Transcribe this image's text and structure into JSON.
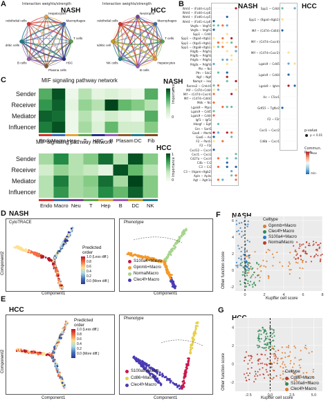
{
  "panels": {
    "A": {
      "letter": "A",
      "nash": {
        "subtitle": "Interaction weights/strength",
        "label": "NASH",
        "nodes": [
          "Hepatocytes",
          "Macrophages",
          "T cells",
          "HSC",
          "Plasma cells",
          "B cells",
          "Dendritic cells",
          "Endothelial cells"
        ]
      },
      "hcc": {
        "subtitle": "Interaction weights/strength",
        "label": "HCC",
        "nodes": [
          "Neutrophil",
          "Macrophages",
          "T cells",
          "Hepatocytes",
          "B cells",
          "NK cells",
          "Dendritic cell",
          "Endothelial cells"
        ]
      }
    },
    "B": {
      "letter": "B",
      "nash_label": "NASH",
      "hcc_label": "HCC",
      "nash_pairs": [
        "Wnt4 − (Fzd4+Lrp5)",
        "Wnt4 − (Fzd4+Lrp6)",
        "Wnt4 − (Fzd6+Lrp5)",
        "Wnt4 − (Fzd1+Lrp6)",
        "Vegfa − Vegfr1",
        "Vegfa − Vegfr2",
        "Spp1 − Cd44",
        "Spp1 − (Itga4+Itgb1)",
        "Spp1 − (Itga5+Itgb1)",
        "Spp1 − (Itga8+Itgb1)",
        "Pdgfb − Pdgfra",
        "Pdgfb − Pdgfrb",
        "Pdgfa − Pdgfra",
        "Pdgfa − Pdgfrb",
        "Ptn − Ncl",
        "Ptn − Sdc2",
        "Ngf − Ngfr",
        "Nampt − Insr",
        "Rarres2 − Cmklr1",
        "Mif − Cd74+Cd44",
        "Mif − (Cd74+Cxcr4)",
        "Mif − (Cd74+Cd44)",
        "Mdk − Ncl",
        "Lgals9 − Ptprc",
        "Lgals9 − Cd45",
        "Lgals9 − Cd44",
        "Igf1 − Igf1r",
        "Hbegf − Egfr",
        "Grn − Sort1",
        "Gas6 − Mertk",
        "Gas6 − Axl",
        "F2 − Pard3",
        "F2 − F2r",
        "Cxcl12 − Cxcr4",
        "Cxcl1 − Cxcr2",
        "Cd27a − Cxcr4",
        "C4b − Cr2",
        "C3 − Cr2",
        "C3 − (Itgam+Itgb2)",
        "Apln − Aplnr",
        "Agt − Agtr1a"
      ],
      "hcc_pairs": [
        "Spp1 − Cd44",
        "Spp1 − (Itga4+Itgb1)",
        "Mif − (Cd74+Cd44)",
        "Mif − (Cd74+Cxcr4)",
        "Mif − (Cd74+Cxcr2)",
        "Lgals9 − Cd45",
        "Lgals9 − Cd44",
        "Lgals9 − Ighm",
        "Hc − C5ar1",
        "Gdf15 − Tgfbr2",
        "F2 − F2r",
        "Cxcl1 − Cxcr2",
        "Cd8b − Cxcr1"
      ],
      "legend": {
        "pvalue_title": "p-value",
        "pvalue_item": "p < 0.01",
        "prob_title": "Commun. Prob.",
        "prob_max": "max",
        "prob_min": "min"
      }
    },
    "C": {
      "letter": "C",
      "nash": {
        "title": "MIF signaling pathway network",
        "group": "NASH",
        "rows": [
          "Sender",
          "Receiver",
          "Mediator",
          "Influencer"
        ],
        "cols": [
          "Endo",
          "Macro",
          "Hep",
          "T",
          "HSC",
          "B",
          "Plasam",
          "DC",
          "Fib"
        ],
        "colors": [
          "#d7302d",
          "#3a66b0",
          "#e8a33b",
          "#5ba24a",
          "#2a2a86",
          "#9b59b6",
          "#8a5a2a",
          "#1e7a8c",
          "#7a4a1e"
        ],
        "matrix": [
          [
            0.6,
            0.95,
            0.05,
            0.3,
            0.1,
            0.15,
            0.1,
            0.05,
            0.6
          ],
          [
            0.7,
            0.9,
            0.1,
            0.4,
            0.3,
            1.0,
            0.55,
            0.45,
            0.3
          ],
          [
            0.9,
            0.85,
            0.05,
            0.3,
            0.1,
            0.2,
            0.1,
            0.05,
            0.6
          ],
          [
            0.8,
            0.95,
            0.05,
            0.35,
            0.15,
            0.55,
            0.2,
            0.2,
            0.45
          ]
        ],
        "legend_title": "Importance",
        "legend_max": "1",
        "legend_min": "0"
      },
      "hcc": {
        "title": "MIF signaling pathway network",
        "group": "HCC",
        "rows": [
          "Sender",
          "Receiver",
          "Mediator",
          "Influencer"
        ],
        "cols": [
          "Endo",
          "Macro",
          "Neu",
          "T",
          "Hep",
          "B",
          "DC",
          "NK"
        ],
        "colors": [
          "#d7302d",
          "#3a66b0",
          "#7b3f99",
          "#5ba24a",
          "#e8a33b",
          "#9b59b6",
          "#c8a021",
          "#1e7a8c"
        ],
        "matrix": [
          [
            0.35,
            0.75,
            0.3,
            0.45,
            0.85,
            0.3,
            0.95,
            0.45
          ],
          [
            0.2,
            0.4,
            0.3,
            0.25,
            0.1,
            0.95,
            0.55,
            0.3
          ],
          [
            0.3,
            0.8,
            0.35,
            0.45,
            0.85,
            0.35,
            1.0,
            0.45
          ],
          [
            0.3,
            0.7,
            0.35,
            0.4,
            0.75,
            0.55,
            0.9,
            0.45
          ]
        ],
        "legend_title": "Importance",
        "legend_max": "1",
        "legend_min": "0"
      }
    },
    "D": {
      "letter": "D",
      "group": "NASH",
      "left_title": "CytoTRACE",
      "right_title": "Phenotype",
      "xlabel": "Component1",
      "ylabel": "Component2",
      "order_title": "Predicted order",
      "order_ticks": [
        "1.0 (Less diff.)",
        "0.8",
        "0.6",
        "0.4",
        "0.2",
        "0.0 (More diff.)"
      ],
      "phenotypes": [
        {
          "name": "S100a4+Macro",
          "color": "#c9174a"
        },
        {
          "name": "Gpnmb+Macro",
          "color": "#f39a2a"
        },
        {
          "name": "NormalMacro",
          "color": "#a7d48c"
        },
        {
          "name": "Clec4f+Macro",
          "color": "#4a3bb3"
        }
      ]
    },
    "E": {
      "letter": "E",
      "group": "HCC",
      "right_title": "Phenotype",
      "xlabel": "Component1",
      "ylabel": "Component2",
      "order_title": "Predicted order",
      "order_ticks": [
        "1.0 (Less diff.)",
        "0.8",
        "0.6",
        "0.4",
        "0.2",
        "0.0 (More diff.)"
      ],
      "phenotypes": [
        {
          "name": "S100a8+Macro",
          "color": "#c9174a"
        },
        {
          "name": "Cd86+Macro",
          "color": "#e6d04a"
        },
        {
          "name": "Clec4f+Macro",
          "color": "#4a3bb3"
        }
      ]
    },
    "F": {
      "letter": "F",
      "group": "NASH",
      "xlabel": "Kupffer cell score",
      "ylabel": "Other function score",
      "legend_title": "Celltype",
      "types": [
        {
          "name": "Gpnmb+Macro",
          "color": "#e07b2a"
        },
        {
          "name": "Clec4f+Macro",
          "color": "#2e8b57"
        },
        {
          "name": "S100a4+Macro",
          "color": "#2b7bbf"
        },
        {
          "name": "NormalMacro",
          "color": "#c0392b"
        }
      ],
      "xticks": [
        "0",
        "2",
        "4",
        "6",
        "8"
      ],
      "yticks": [
        "-2",
        "0",
        "2",
        "4",
        "6"
      ]
    },
    "G": {
      "letter": "G",
      "group": "HCC",
      "xlabel": "Kupffer cell score",
      "ylabel": "Other function score",
      "legend_title": "Celltype",
      "types": [
        {
          "name": "Cd86+Macro",
          "color": "#c0392b"
        },
        {
          "name": "S100a8+Macro",
          "color": "#2e8b57"
        },
        {
          "name": "Clec4f+Macro",
          "color": "#e07b2a"
        }
      ],
      "xticks": [
        "-2.5",
        "0.0",
        "2.5",
        "5.0"
      ],
      "yticks": [
        "-2",
        "0",
        "2",
        "4"
      ]
    }
  },
  "chart_data": [
    {
      "type": "heatmap",
      "title": "MIF signaling pathway network",
      "group": "NASH",
      "rows": [
        "Sender",
        "Receiver",
        "Mediator",
        "Influencer"
      ],
      "cols": [
        "Endo",
        "Macro",
        "Hep",
        "T",
        "HSC",
        "B",
        "Plasam",
        "DC",
        "Fib"
      ],
      "values": [
        [
          0.6,
          0.95,
          0.05,
          0.3,
          0.1,
          0.15,
          0.1,
          0.05,
          0.6
        ],
        [
          0.7,
          0.9,
          0.1,
          0.4,
          0.3,
          1.0,
          0.55,
          0.45,
          0.3
        ],
        [
          0.9,
          0.85,
          0.05,
          0.3,
          0.1,
          0.2,
          0.1,
          0.05,
          0.6
        ],
        [
          0.8,
          0.95,
          0.05,
          0.35,
          0.15,
          0.55,
          0.2,
          0.2,
          0.45
        ]
      ],
      "legend": "Importance"
    },
    {
      "type": "heatmap",
      "title": "MIF signaling pathway network",
      "group": "HCC",
      "rows": [
        "Sender",
        "Receiver",
        "Mediator",
        "Influencer"
      ],
      "cols": [
        "Endo",
        "Macro",
        "Neu",
        "T",
        "Hep",
        "B",
        "DC",
        "NK"
      ],
      "values": [
        [
          0.35,
          0.75,
          0.3,
          0.45,
          0.85,
          0.3,
          0.95,
          0.45
        ],
        [
          0.2,
          0.4,
          0.3,
          0.25,
          0.1,
          0.95,
          0.55,
          0.3
        ],
        [
          0.3,
          0.8,
          0.35,
          0.45,
          0.85,
          0.35,
          1.0,
          0.45
        ],
        [
          0.3,
          0.7,
          0.35,
          0.4,
          0.75,
          0.55,
          0.9,
          0.45
        ]
      ],
      "legend": "Importance"
    },
    {
      "type": "scatter",
      "group": "NASH",
      "xlabel": "Kupffer cell score",
      "ylabel": "Other function score",
      "xlim": [
        -1,
        8
      ],
      "ylim": [
        -2.5,
        6.5
      ],
      "threshold_x": 0,
      "series": [
        {
          "name": "Gpnmb+Macro",
          "cluster": {
            "x": [
              0,
              6
            ],
            "y": [
              -1,
              2.5
            ]
          }
        },
        {
          "name": "Clec4f+Macro",
          "cluster": {
            "x": [
              -0.5,
              1.5
            ],
            "y": [
              -2,
              1
            ]
          }
        },
        {
          "name": "S100a4+Macro",
          "cluster": {
            "x": [
              -1,
              0.5
            ],
            "y": [
              0,
              6
            ]
          }
        },
        {
          "name": "NormalMacro",
          "cluster": {
            "x": [
              5,
              8
            ],
            "y": [
              1,
              3.5
            ]
          }
        }
      ]
    },
    {
      "type": "scatter",
      "group": "HCC",
      "xlabel": "Kupffer cell score",
      "ylabel": "Other function score",
      "xlim": [
        -4,
        6
      ],
      "ylim": [
        -3,
        5
      ],
      "threshold_x": 0,
      "series": [
        {
          "name": "Cd86+Macro",
          "cluster": {
            "x": [
              -3,
              1
            ],
            "y": [
              -2,
              1.5
            ]
          }
        },
        {
          "name": "S100a8+Macro",
          "cluster": {
            "x": [
              -1.5,
              0.5
            ],
            "y": [
              1.5,
              4
            ]
          }
        },
        {
          "name": "Clec4f+Macro",
          "cluster": {
            "x": [
              0,
              5
            ],
            "y": [
              -2,
              2
            ]
          }
        }
      ]
    }
  ]
}
